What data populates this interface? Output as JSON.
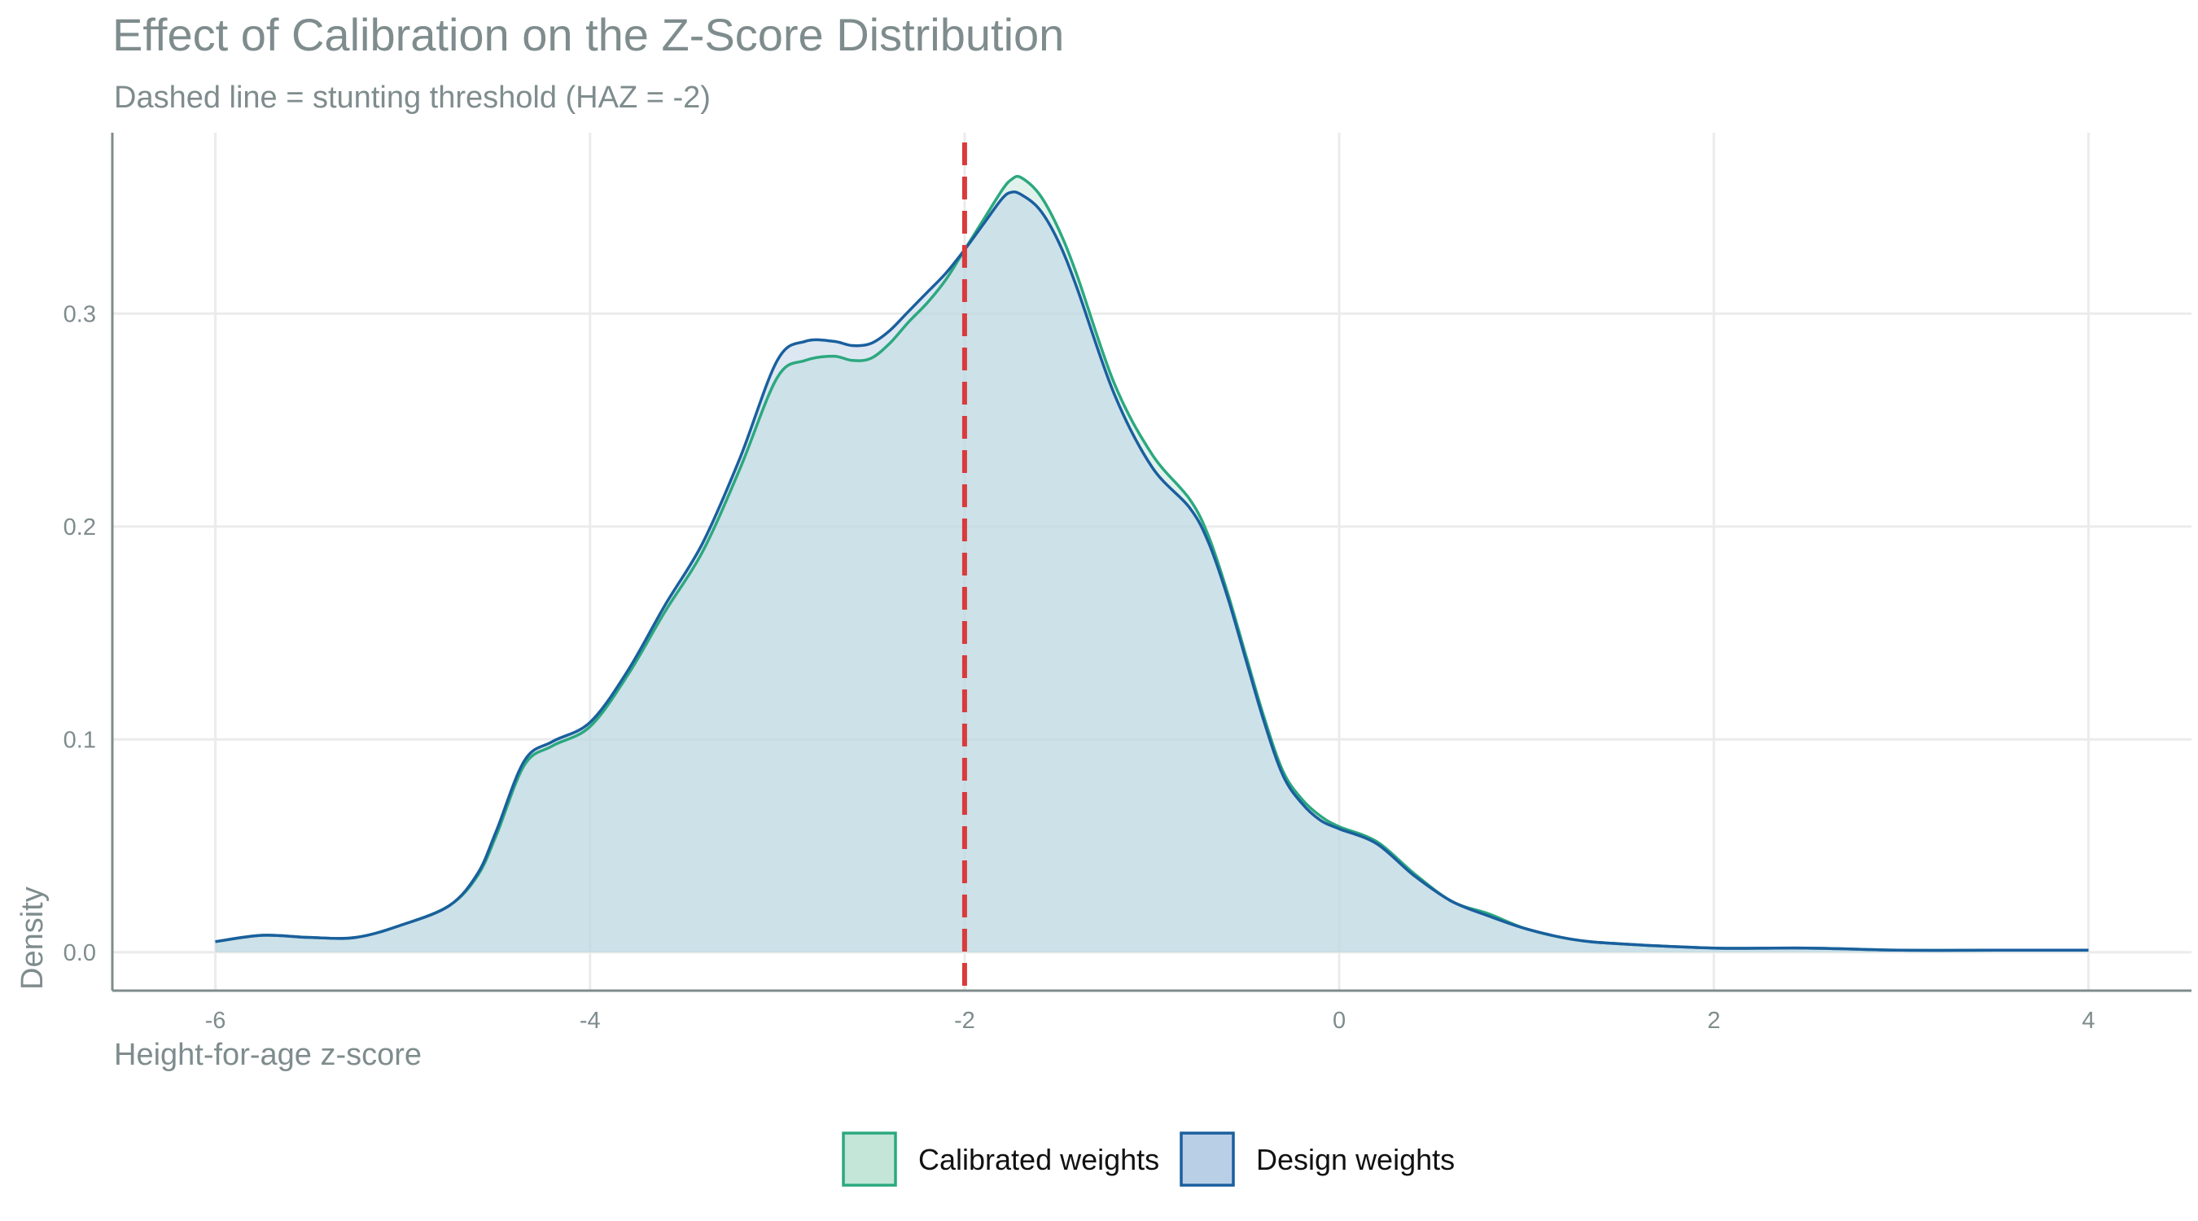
{
  "chart_data": {
    "type": "area",
    "title": "Effect of Calibration on the Z-Score Distribution",
    "subtitle": "Dashed line = stunting threshold (HAZ = -2)",
    "xlabel": "Height-for-age z-score",
    "ylabel": "Density",
    "xlim": [
      -6.55,
      4.55
    ],
    "ylim": [
      -0.018,
      0.385
    ],
    "x_ticks": [
      -6,
      -4,
      -2,
      0,
      2,
      4
    ],
    "x_tick_labels": [
      "-6",
      "-4",
      "-2",
      "0",
      "2",
      "4"
    ],
    "y_ticks": [
      0.0,
      0.1,
      0.2,
      0.3
    ],
    "y_tick_labels": [
      "0.0",
      "0.1",
      "0.2",
      "0.3"
    ],
    "grid": true,
    "legend_position": "bottom",
    "reference_line": {
      "x": -2,
      "style": "dashed",
      "color": "#d93b3b"
    },
    "x": [
      -6.0,
      -5.75,
      -5.5,
      -5.25,
      -5.0,
      -4.75,
      -4.6,
      -4.5,
      -4.35,
      -4.2,
      -4.0,
      -3.8,
      -3.6,
      -3.4,
      -3.2,
      -3.0,
      -2.85,
      -2.7,
      -2.6,
      -2.5,
      -2.4,
      -2.3,
      -2.2,
      -2.1,
      -2.0,
      -1.9,
      -1.8,
      -1.75,
      -1.7,
      -1.6,
      -1.5,
      -1.4,
      -1.2,
      -1.0,
      -0.8,
      -0.7,
      -0.6,
      -0.5,
      -0.4,
      -0.3,
      -0.2,
      -0.1,
      0.0,
      0.2,
      0.4,
      0.6,
      0.8,
      1.0,
      1.25,
      1.5,
      2.0,
      2.5,
      3.0,
      3.5,
      4.0
    ],
    "series": [
      {
        "name": "Calibrated weights",
        "color": "#2ca87f",
        "fill": "#c3e6d9",
        "values": [
          0.005,
          0.008,
          0.007,
          0.007,
          0.013,
          0.022,
          0.036,
          0.055,
          0.088,
          0.097,
          0.106,
          0.13,
          0.16,
          0.188,
          0.227,
          0.27,
          0.278,
          0.28,
          0.278,
          0.279,
          0.286,
          0.296,
          0.305,
          0.316,
          0.33,
          0.344,
          0.358,
          0.363,
          0.364,
          0.356,
          0.34,
          0.318,
          0.267,
          0.234,
          0.213,
          0.196,
          0.17,
          0.14,
          0.11,
          0.085,
          0.072,
          0.064,
          0.059,
          0.052,
          0.037,
          0.024,
          0.018,
          0.011,
          0.006,
          0.004,
          0.002,
          0.002,
          0.001,
          0.001,
          0.001
        ]
      },
      {
        "name": "Design weights",
        "color": "#1a5f9e",
        "fill": "#b9cfe6",
        "values": [
          0.005,
          0.008,
          0.007,
          0.007,
          0.013,
          0.022,
          0.037,
          0.057,
          0.09,
          0.099,
          0.108,
          0.132,
          0.163,
          0.192,
          0.232,
          0.278,
          0.287,
          0.287,
          0.285,
          0.286,
          0.292,
          0.301,
          0.31,
          0.319,
          0.33,
          0.342,
          0.354,
          0.357,
          0.356,
          0.349,
          0.334,
          0.312,
          0.262,
          0.228,
          0.209,
          0.193,
          0.168,
          0.138,
          0.108,
          0.083,
          0.07,
          0.062,
          0.058,
          0.051,
          0.036,
          0.024,
          0.017,
          0.011,
          0.006,
          0.004,
          0.002,
          0.002,
          0.001,
          0.001,
          0.001
        ]
      }
    ]
  }
}
